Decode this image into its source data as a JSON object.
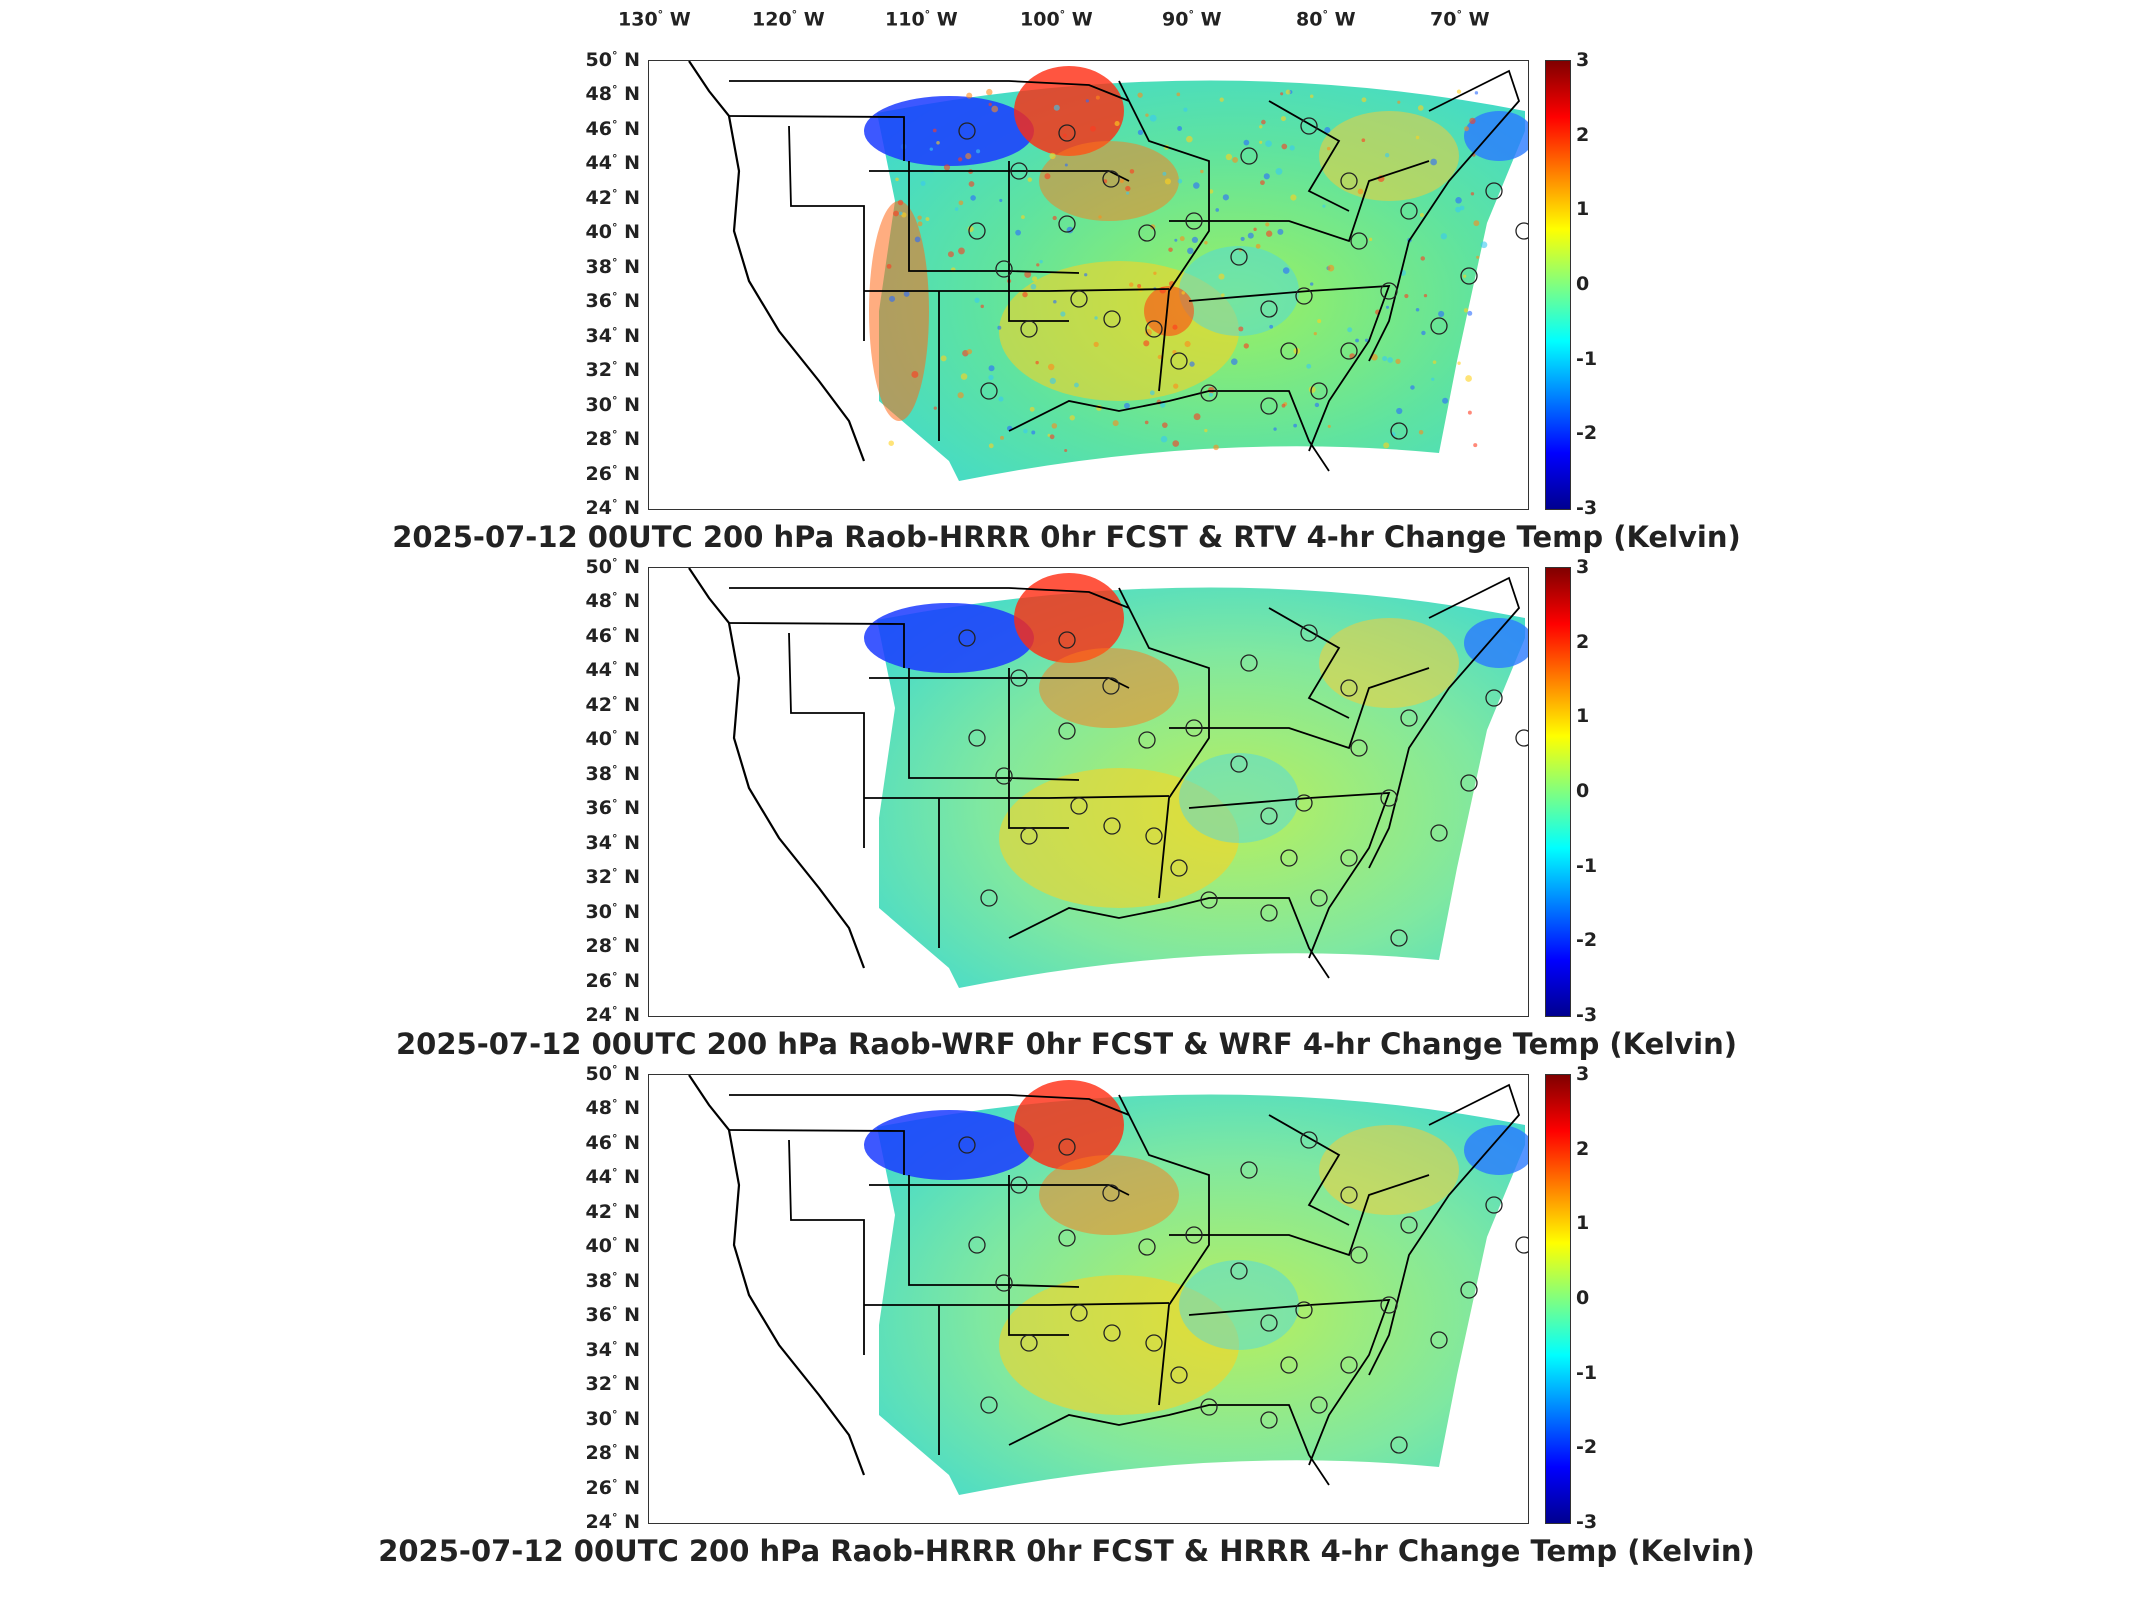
{
  "longitude_labels": [
    {
      "deg": "130",
      "dir": "W"
    },
    {
      "deg": "120",
      "dir": "W"
    },
    {
      "deg": "110",
      "dir": "W"
    },
    {
      "deg": "100",
      "dir": "W"
    },
    {
      "deg": "90",
      "dir": "W"
    },
    {
      "deg": "80",
      "dir": "W"
    },
    {
      "deg": "70",
      "dir": "W"
    }
  ],
  "latitude_labels": [
    {
      "deg": "50",
      "dir": "N"
    },
    {
      "deg": "48",
      "dir": "N"
    },
    {
      "deg": "46",
      "dir": "N"
    },
    {
      "deg": "44",
      "dir": "N"
    },
    {
      "deg": "42",
      "dir": "N"
    },
    {
      "deg": "40",
      "dir": "N"
    },
    {
      "deg": "38",
      "dir": "N"
    },
    {
      "deg": "36",
      "dir": "N"
    },
    {
      "deg": "34",
      "dir": "N"
    },
    {
      "deg": "32",
      "dir": "N"
    },
    {
      "deg": "30",
      "dir": "N"
    },
    {
      "deg": "28",
      "dir": "N"
    },
    {
      "deg": "26",
      "dir": "N"
    },
    {
      "deg": "24",
      "dir": "N"
    }
  ],
  "colorbar": {
    "ticks": [
      "3",
      "2",
      "1",
      "0",
      "-1",
      "-2",
      "-3"
    ],
    "range": [
      -3,
      3
    ],
    "colormap": "jet"
  },
  "panels": [
    {
      "title": "2025-07-12 00UTC 200 hPa Raob-HRRR 0hr FCST & RTV 4-hr Change Temp (Kelvin)",
      "field_style": "noisy",
      "accent": "#ff3b1f"
    },
    {
      "title": "2025-07-12 00UTC 200 hPa Raob-WRF 0hr FCST & WRF 4-hr Change Temp (Kelvin)",
      "field_style": "smooth",
      "accent": "#ffd21e"
    },
    {
      "title": "2025-07-12 00UTC 200 hPa Raob-HRRR 0hr FCST & HRRR 4-hr Change Temp (Kelvin)",
      "field_style": "smooth",
      "accent": "#ffd21e"
    }
  ]
}
